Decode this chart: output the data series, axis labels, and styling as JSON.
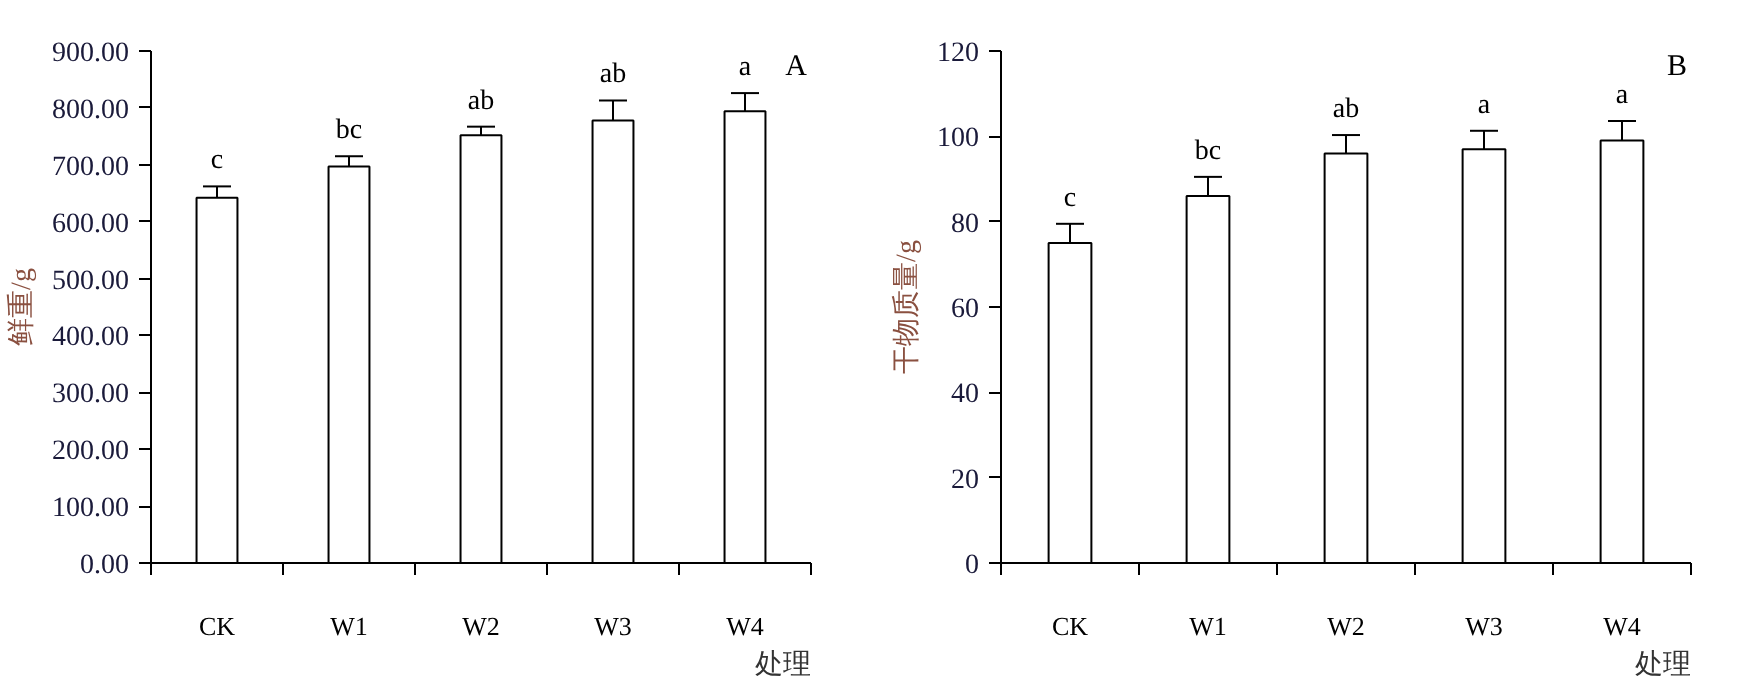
{
  "chart_data": [
    {
      "type": "bar",
      "categories": [
        "CK",
        "W1",
        "W2",
        "W3",
        "W4"
      ],
      "values": [
        642,
        697,
        752,
        778,
        794
      ],
      "errors": [
        20,
        18,
        15,
        35,
        32
      ],
      "color": "#ffffff",
      "ylabel": "鲜重/g",
      "xlabel": "处理",
      "ylim": [
        0,
        900
      ],
      "yticks": [
        {
          "value": 0,
          "label": "0.00"
        },
        {
          "value": 100,
          "label": "100.00"
        },
        {
          "value": 200,
          "label": "200.00"
        },
        {
          "value": 300,
          "label": "300.00"
        },
        {
          "value": 400,
          "label": "400.00"
        },
        {
          "value": 500,
          "label": "500.00"
        },
        {
          "value": 600,
          "label": "600.00"
        },
        {
          "value": 700,
          "label": "700.00"
        },
        {
          "value": 800,
          "label": "800.00"
        },
        {
          "value": 900,
          "label": "900.00"
        }
      ],
      "annotations": [
        "c",
        "bc",
        "ab",
        "ab",
        "a",
        "A"
      ]
    },
    {
      "type": "bar",
      "categories": [
        "CK",
        "W1",
        "W2",
        "W3",
        "W4"
      ],
      "values": [
        75,
        86,
        96,
        97,
        99
      ],
      "errors": [
        4.5,
        4.5,
        4.3,
        4.3,
        4.6
      ],
      "color": "#ffffff",
      "ylabel": "干物质量/g",
      "xlabel": "处理",
      "ylim": [
        0,
        120
      ],
      "yticks": [
        0,
        20,
        40,
        60,
        80,
        100,
        120
      ],
      "annotations": [
        "c",
        "bc",
        "ab",
        "a",
        "a",
        "B"
      ]
    }
  ]
}
